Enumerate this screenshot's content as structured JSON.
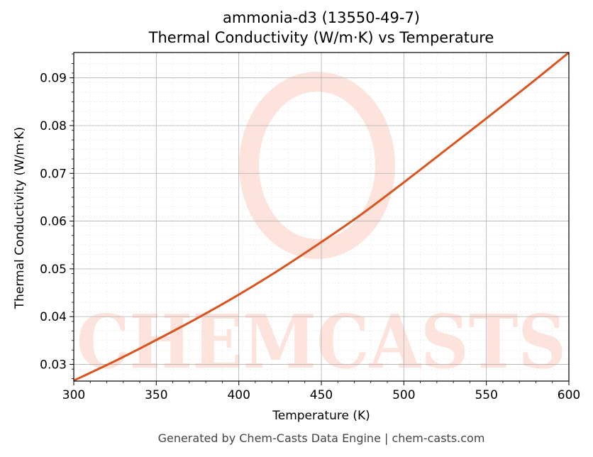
{
  "footer": "Generated by Chem-Casts Data Engine | chem-casts.com",
  "watermark": "CHEMCASTS",
  "colors": {
    "line": "#d9541e",
    "watermark": "#fde3dc",
    "grid_major": "#b0b0b0",
    "grid_minor": "#e6e6e6"
  },
  "chart_data": {
    "type": "line",
    "title": "ammonia-d3 (13550-49-7)",
    "subtitle": "Thermal Conductivity (W/m·K) vs Temperature",
    "xlabel": "Temperature (K)",
    "ylabel": "Thermal Conductivity (W/m·K)",
    "xlim": [
      300,
      600
    ],
    "ylim": [
      0.0265,
      0.0953
    ],
    "xticks": [
      300,
      350,
      400,
      450,
      500,
      550,
      600
    ],
    "yticks": [
      0.03,
      0.04,
      0.05,
      0.06,
      0.07,
      0.08,
      0.09
    ],
    "grid": true,
    "series": [
      {
        "x": [
          300,
          325,
          350,
          375,
          400,
          425,
          450,
          475,
          500,
          525,
          550,
          575,
          600
        ],
        "y": [
          0.0266,
          0.0307,
          0.0351,
          0.0397,
          0.0446,
          0.0499,
          0.0556,
          0.0616,
          0.0681,
          0.0748,
          0.0815,
          0.0883,
          0.0953
        ]
      }
    ]
  }
}
